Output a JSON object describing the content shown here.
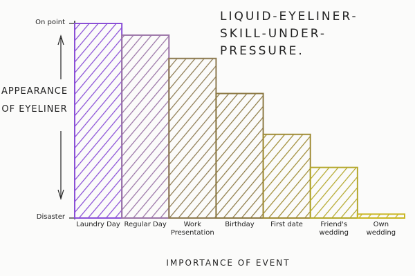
{
  "chart_data": {
    "type": "bar",
    "title": "LIQUID-EYELINER-SKILL-UNDER-PRESSURE.",
    "y_label": "APPEARANCE OF EYELINER",
    "x_label": "IMPORTANCE OF EVENT",
    "categories": [
      "Laundry Day",
      "Regular Day",
      "Work Presentation",
      "Birthday",
      "First date",
      "Friend's wedding",
      "Own wedding"
    ],
    "values": [
      100,
      94,
      82,
      64,
      43,
      26,
      2
    ],
    "colors": [
      "#8a4fd6",
      "#9a74a6",
      "#8e7b52",
      "#8d7a45",
      "#a08c36",
      "#b4a82c",
      "#c9b622"
    ],
    "ylim": [
      0,
      100
    ],
    "yticks": [
      {
        "value": 0,
        "label": "Disaster"
      },
      {
        "value": 100,
        "label": "On point"
      }
    ]
  }
}
